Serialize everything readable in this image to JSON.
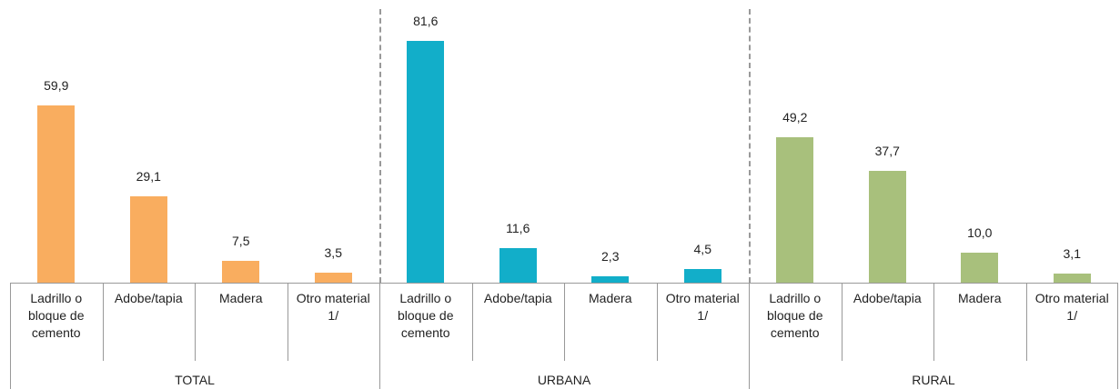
{
  "chart_data": [
    {
      "type": "bar",
      "group_label": "TOTAL",
      "categories": [
        "Ladrillo o bloque de cemento",
        "Adobe/tapia",
        "Madera",
        "Otro material 1/"
      ],
      "values": [
        59.9,
        29.1,
        7.5,
        3.5
      ],
      "value_labels": [
        "59,9",
        "29,1",
        "7,5",
        "3,5"
      ],
      "color": "#f9ad5f"
    },
    {
      "type": "bar",
      "group_label": "URBANA",
      "categories": [
        "Ladrillo o bloque de cemento",
        "Adobe/tapia",
        "Madera",
        "Otro material 1/"
      ],
      "values": [
        81.6,
        11.6,
        2.3,
        4.5
      ],
      "value_labels": [
        "81,6",
        "11,6",
        "2,3",
        "4,5"
      ],
      "color": "#12aec9"
    },
    {
      "type": "bar",
      "group_label": "RURAL",
      "categories": [
        "Ladrillo o bloque de cemento",
        "Adobe/tapia",
        "Madera",
        "Otro material 1/"
      ],
      "values": [
        49.2,
        37.7,
        10.0,
        3.1
      ],
      "value_labels": [
        "49,2",
        "37,7",
        "10,0",
        "3,1"
      ],
      "color": "#a8c07c"
    }
  ]
}
